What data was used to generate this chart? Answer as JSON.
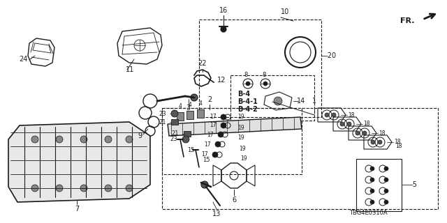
{
  "bg_color": "#ffffff",
  "lc": "#1a1a1a",
  "tc": "#1a1a1a",
  "diagram_code": "TBG4E0310A",
  "figsize": [
    6.4,
    3.2
  ],
  "dpi": 100
}
